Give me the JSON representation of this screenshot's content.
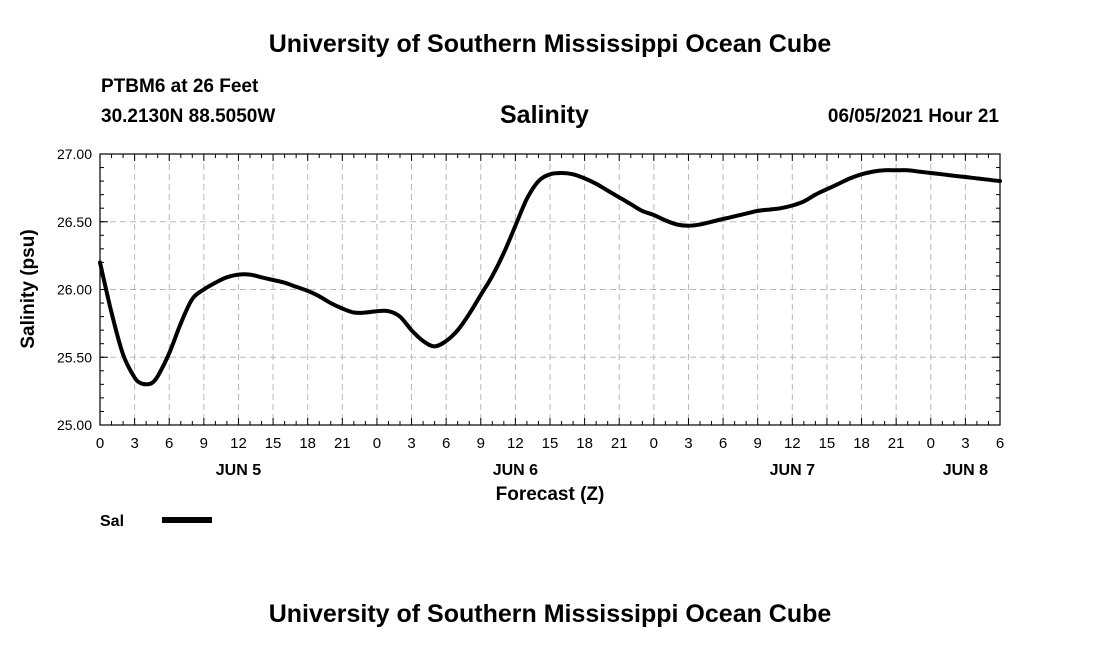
{
  "header": {
    "title": "University of Southern Mississippi Ocean Cube",
    "station": "PTBM6 at 26 Feet",
    "coords": "30.2130N  88.5050W",
    "variable": "Salinity",
    "timestamp": "06/05/2021 Hour 21"
  },
  "footer": {
    "title": "University of Southern Mississippi Ocean Cube"
  },
  "chart_data": {
    "type": "line",
    "title": "Salinity",
    "xlabel": "Forecast (Z)",
    "ylabel": "Salinity (psu)",
    "ylim": [
      25.0,
      27.0
    ],
    "xlim": [
      0,
      78
    ],
    "x_unit": "hours from 00Z JUN 5",
    "yticks": [
      "25.00",
      "25.50",
      "26.00",
      "26.50",
      "27.00"
    ],
    "xtick_labels": [
      "0",
      "3",
      "6",
      "9",
      "12",
      "15",
      "18",
      "21",
      "0",
      "3",
      "6",
      "9",
      "12",
      "15",
      "18",
      "21",
      "0",
      "3",
      "6",
      "9",
      "12",
      "15",
      "18",
      "21",
      "0",
      "3",
      "6"
    ],
    "date_labels": [
      {
        "label": "JUN 5",
        "x": 12
      },
      {
        "label": "JUN 6",
        "x": 36
      },
      {
        "label": "JUN 7",
        "x": 60
      },
      {
        "label": "JUN 8",
        "x": 75
      }
    ],
    "grid": true,
    "legend": {
      "position": "bottom-left",
      "label": "Sal"
    },
    "series": [
      {
        "name": "Sal",
        "color": "#000000",
        "x": [
          0,
          1,
          2,
          3,
          3.5,
          4,
          4.5,
          5,
          6,
          7,
          8,
          9,
          10,
          11,
          12,
          13,
          14,
          15,
          16,
          17,
          18,
          19,
          20,
          21,
          22,
          23,
          24,
          25,
          26,
          27,
          28,
          29,
          30,
          31,
          32,
          33,
          34,
          35,
          36,
          37,
          38,
          39,
          40,
          41,
          42,
          43,
          44,
          45,
          46,
          47,
          48,
          49,
          50,
          51,
          52,
          53,
          54,
          55,
          56,
          57,
          58,
          59,
          60,
          61,
          62,
          63,
          64,
          65,
          66,
          67,
          68,
          69,
          70,
          71,
          72,
          73,
          74,
          75,
          76,
          77,
          78
        ],
        "y": [
          26.2,
          25.83,
          25.52,
          25.35,
          25.31,
          25.3,
          25.31,
          25.36,
          25.53,
          25.75,
          25.93,
          26.0,
          26.05,
          26.09,
          26.11,
          26.11,
          26.09,
          26.07,
          26.05,
          26.02,
          25.99,
          25.95,
          25.9,
          25.86,
          25.83,
          25.83,
          25.84,
          25.84,
          25.8,
          25.7,
          25.62,
          25.58,
          25.62,
          25.7,
          25.82,
          25.96,
          26.1,
          26.27,
          26.47,
          26.67,
          26.8,
          26.85,
          26.86,
          26.85,
          26.82,
          26.78,
          26.73,
          26.68,
          26.63,
          26.58,
          26.55,
          26.51,
          26.48,
          26.47,
          26.48,
          26.5,
          26.52,
          26.54,
          26.56,
          26.58,
          26.59,
          26.6,
          26.62,
          26.65,
          26.7,
          26.74,
          26.78,
          26.82,
          26.85,
          26.87,
          26.88,
          26.88,
          26.88,
          26.87,
          26.86,
          26.85,
          26.84,
          26.83,
          26.82,
          26.81,
          26.8
        ]
      }
    ]
  }
}
